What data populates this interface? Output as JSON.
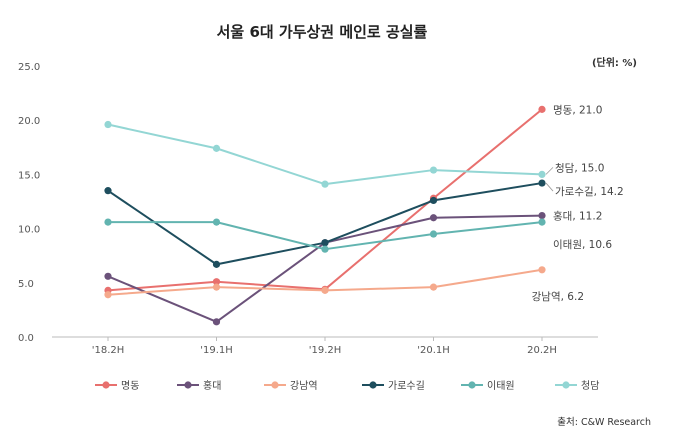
{
  "chart_data": {
    "type": "line",
    "title": "서울 6대 가두상권 메인로 공실률",
    "unit_label": "(단위: %)",
    "source": "출처: C&W Research",
    "categories": [
      "'18.2H",
      "'19.1H",
      "'19.2H",
      "'20.1H",
      "20.2H"
    ],
    "ylim": [
      0,
      25
    ],
    "yticks": [
      "0.0",
      "5.0",
      "10.0",
      "15.0",
      "20.0",
      "25.0"
    ],
    "grid": false,
    "legend_position": "bottom",
    "series": [
      {
        "name": "명동",
        "color": "#E8706E",
        "values": [
          4.3,
          5.1,
          4.4,
          12.8,
          21.0
        ],
        "end_label": "명동, 21.0"
      },
      {
        "name": "홍대",
        "color": "#6B527A",
        "values": [
          5.6,
          1.4,
          8.7,
          11.0,
          11.2
        ],
        "end_label": "홍대, 11.2"
      },
      {
        "name": "강남역",
        "color": "#F5A98C",
        "values": [
          3.9,
          4.6,
          4.3,
          4.6,
          6.2
        ],
        "end_label": "강남역, 6.2"
      },
      {
        "name": "가로수길",
        "color": "#1E4E5E",
        "values": [
          13.5,
          6.7,
          8.7,
          12.6,
          14.2
        ],
        "end_label": "가로수길, 14.2"
      },
      {
        "name": "이태원",
        "color": "#62B4B0",
        "values": [
          10.6,
          10.6,
          8.1,
          9.5,
          10.6
        ],
        "end_label": "이태원, 10.6"
      },
      {
        "name": "청담",
        "color": "#93D6D4",
        "values": [
          19.6,
          17.4,
          14.1,
          15.4,
          15.0
        ],
        "end_label": "청담, 15.0"
      }
    ]
  }
}
